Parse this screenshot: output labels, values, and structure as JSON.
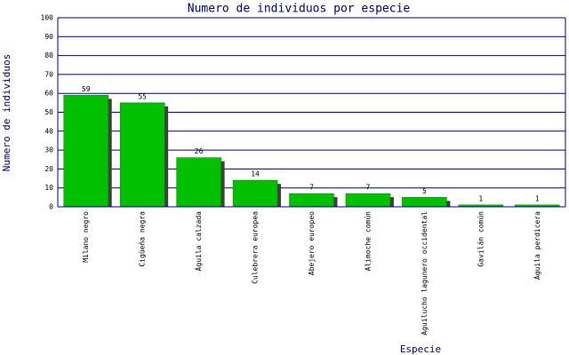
{
  "chart_data": {
    "type": "bar",
    "title": "Numero de individuos por especie",
    "x_label": "Especie",
    "y_label": "Numero de individuos",
    "categories": [
      "Milano negro",
      "Cigüeña negra",
      "Águila calzada",
      "Culebrera europea",
      "Abejero europeo",
      "Alimoche común",
      "Aguilucho lagunero occidental",
      "Gavilán común",
      "Águila perdicera"
    ],
    "values": [
      59,
      55,
      26,
      14,
      7,
      7,
      5,
      1,
      1
    ],
    "color": "#00c000",
    "ylim": [
      0,
      100
    ],
    "yticks": [
      0,
      10,
      20,
      30,
      40,
      50,
      60,
      70,
      80,
      90,
      100
    ],
    "grid": true
  }
}
